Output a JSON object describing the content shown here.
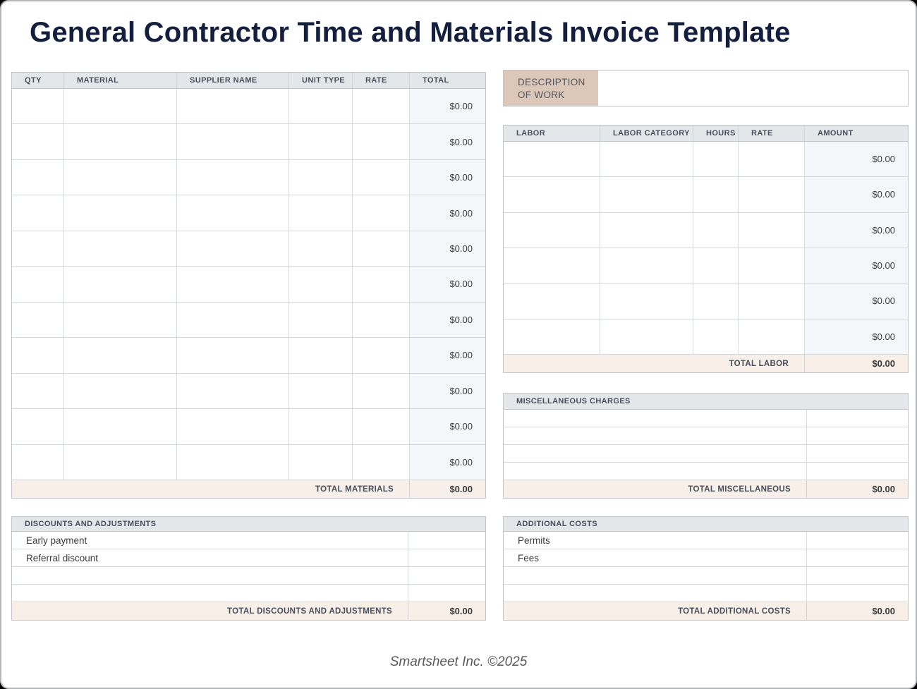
{
  "page": {
    "title": "General Contractor Time and Materials Invoice Template",
    "footer": "Smartsheet Inc. ©2025"
  },
  "colors": {
    "title_text": "#141f3e",
    "header_bg": "#e3e7ea",
    "header_text": "#474e5c",
    "total_row_bg": "#f8efe8",
    "money_column_bg": "#f3f7f9",
    "description_label_bg": "#dcc7b8",
    "table_border": "#c2c6ca"
  },
  "materials": {
    "headers": [
      "QTY",
      "MATERIAL",
      "SUPPLIER NAME",
      "UNIT TYPE",
      "RATE",
      "TOTAL"
    ],
    "rows": [
      "$0.00",
      "$0.00",
      "$0.00",
      "$0.00",
      "$0.00",
      "$0.00",
      "$0.00",
      "$0.00",
      "$0.00",
      "$0.00",
      "$0.00"
    ],
    "total_label": "TOTAL MATERIALS",
    "total_value": "$0.00"
  },
  "description": {
    "label": "DESCRIPTION OF WORK",
    "value": ""
  },
  "labor": {
    "headers": [
      "LABOR",
      "LABOR CATEGORY",
      "HOURS",
      "RATE",
      "AMOUNT"
    ],
    "rows": [
      "$0.00",
      "$0.00",
      "$0.00",
      "$0.00",
      "$0.00",
      "$0.00"
    ],
    "total_label": "TOTAL LABOR",
    "total_value": "$0.00"
  },
  "miscellaneous": {
    "header": "MISCELLANEOUS CHARGES",
    "rows": [
      "",
      "",
      "",
      ""
    ],
    "total_label": "TOTAL MISCELLANEOUS",
    "total_value": "$0.00"
  },
  "discounts": {
    "header": "DISCOUNTS AND ADJUSTMENTS",
    "rows": [
      "Early payment",
      "Referral discount",
      "",
      ""
    ],
    "total_label": "TOTAL DISCOUNTS AND ADJUSTMENTS",
    "total_value": "$0.00"
  },
  "additional": {
    "header": "ADDITIONAL COSTS",
    "rows": [
      "Permits",
      "Fees",
      "",
      ""
    ],
    "total_label": "TOTAL ADDITIONAL COSTS",
    "total_value": "$0.00"
  }
}
